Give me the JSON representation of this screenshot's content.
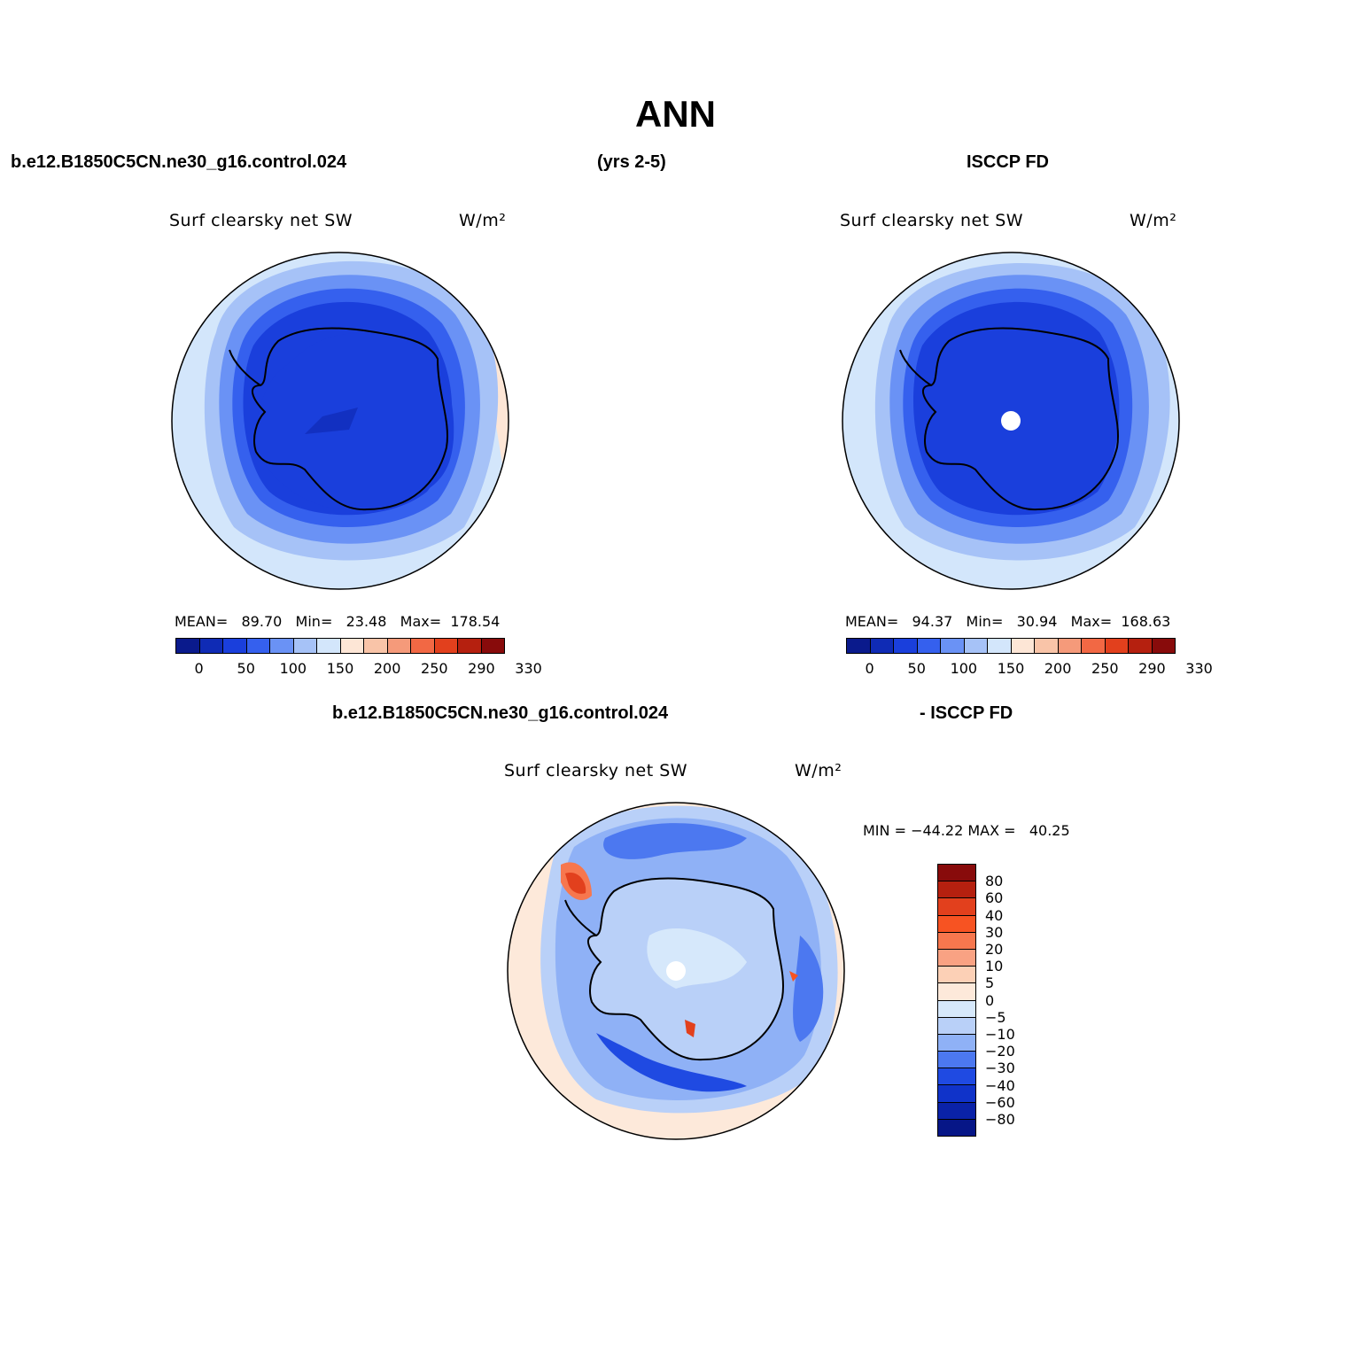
{
  "title": "ANN",
  "header": {
    "case_name": "b.e12.B1850C5CN.ne30_g16.control.024",
    "years": "(yrs 2-5)",
    "obs_name": "ISCCP FD",
    "diff_case": "b.e12.B1850C5CN.ne30_g16.control.024",
    "diff_obs": "- ISCCP FD"
  },
  "panels": [
    {
      "variable": "Surf clearsky net SW",
      "units": "W/m²",
      "stats": "MEAN=   89.70   Min=   23.48   Max=  178.54"
    },
    {
      "variable": "Surf clearsky net SW",
      "units": "W/m²",
      "stats": "MEAN=   94.37   Min=   30.94   Max=  168.63"
    },
    {
      "variable": "Surf clearsky net SW",
      "units": "W/m²",
      "stats": "MIN = −44.22 MAX =   40.25"
    }
  ],
  "colorbar_abs": {
    "ticks": [
      "0",
      "50",
      "100",
      "150",
      "200",
      "250",
      "290",
      "330"
    ],
    "colors": [
      "#0a1a8c",
      "#0f2bb5",
      "#1a3fdc",
      "#3560ee",
      "#6a92f5",
      "#a6c2f7",
      "#d3e6fb",
      "#fde6d6",
      "#f9c4a8",
      "#f59a7a",
      "#f26844",
      "#e2401d",
      "#b5200f",
      "#880b0b"
    ]
  },
  "colorbar_diff": {
    "labels": [
      "80",
      "60",
      "40",
      "30",
      "20",
      "10",
      "5",
      "0",
      "−5",
      "−10",
      "−20",
      "−30",
      "−40",
      "−60",
      "−80"
    ],
    "colors": [
      "#880b0b",
      "#b5200f",
      "#e2401d",
      "#f75322",
      "#f7774e",
      "#f9a283",
      "#fcd0b6",
      "#fde9da",
      "#d6e8fb",
      "#b9d0f8",
      "#8fb1f6",
      "#4c78f0",
      "#1f4ae2",
      "#1033c9",
      "#0a22a8",
      "#061687"
    ]
  },
  "chart_data": {
    "type": "map",
    "projection": "south polar stereographic",
    "region": "Antarctica / Southern Ocean",
    "maps": [
      {
        "name": "model",
        "mean": 89.7,
        "min": 23.48,
        "max": 178.54
      },
      {
        "name": "ISCCP FD",
        "mean": 94.37,
        "min": 30.94,
        "max": 168.63
      },
      {
        "name": "model - ISCCP FD",
        "min": -44.22,
        "max": 40.25
      }
    ]
  }
}
